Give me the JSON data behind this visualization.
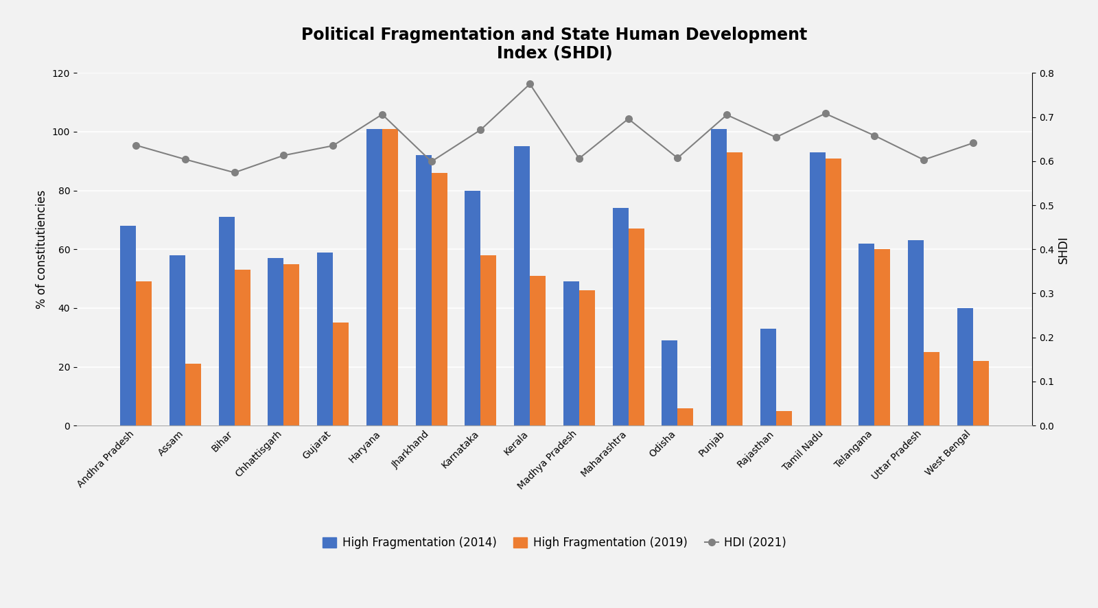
{
  "title": "Political Fragmentation and State Human Development\nIndex (SHDI)",
  "ylabel_left": "% of constitutiencies",
  "ylabel_right": "SHDI",
  "categories": [
    "Andhra Pradesh",
    "Assam",
    "Bihar",
    "Chhattisgarh",
    "Gujarat",
    "Haryana",
    "Jharkhand",
    "Karnataka",
    "Kerala",
    "Madhya Pradesh",
    "Maharashtra",
    "Odisha",
    "Punjab",
    "Rajasthan",
    "Tamil Nadu",
    "Telangana",
    "Uttar Pradesh",
    "West Bengal"
  ],
  "high_frag_2014": [
    68,
    58,
    71,
    57,
    59,
    101,
    92,
    80,
    95,
    49,
    74,
    29,
    101,
    33,
    93,
    62,
    63,
    40
  ],
  "high_frag_2019": [
    49,
    21,
    53,
    55,
    35,
    101,
    86,
    58,
    51,
    46,
    67,
    6,
    93,
    5,
    91,
    60,
    25,
    22
  ],
  "hdi_2021": [
    0.636,
    0.604,
    0.574,
    0.613,
    0.635,
    0.706,
    0.599,
    0.671,
    0.775,
    0.606,
    0.696,
    0.607,
    0.705,
    0.654,
    0.708,
    0.658,
    0.603,
    0.641
  ],
  "bar_color_2014": "#4472C4",
  "bar_color_2019": "#ED7D31",
  "line_color": "#808080",
  "ylim_left": [
    0,
    120
  ],
  "ylim_right": [
    0,
    0.8
  ],
  "yticks_left": [
    0,
    20,
    40,
    60,
    80,
    100,
    120
  ],
  "yticks_right": [
    0,
    0.1,
    0.2,
    0.3,
    0.4,
    0.5,
    0.6,
    0.7,
    0.8
  ],
  "legend_labels": [
    "High Fragmentation (2014)",
    "High Fragmentation (2019)",
    "HDI (2021)"
  ],
  "fig_background_color": "#F2F2F2",
  "plot_background_color": "#F2F2F2",
  "grid_color": "#FFFFFF",
  "title_fontsize": 17,
  "axis_fontsize": 12,
  "tick_fontsize": 10,
  "legend_fontsize": 12,
  "bar_width": 0.32
}
